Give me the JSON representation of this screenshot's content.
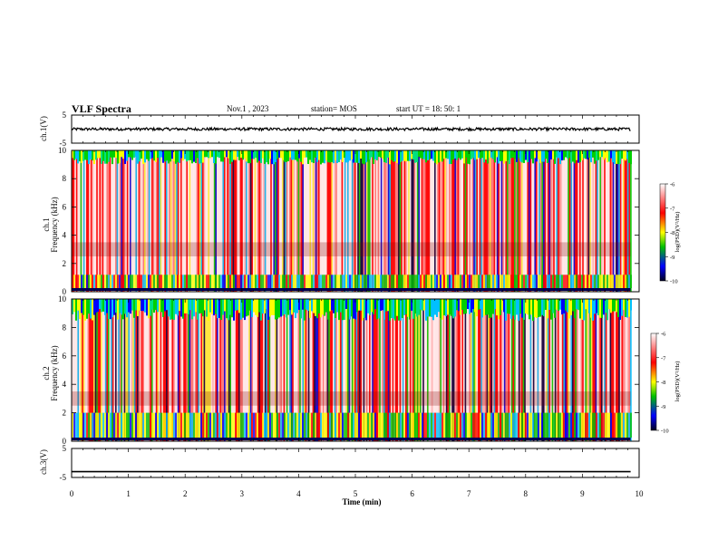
{
  "header": {
    "title": "VLF Spectra",
    "date": "Nov.1 , 2023",
    "station": "station= MOS",
    "start_ut": "start UT = 18: 50: 1"
  },
  "chart_data": [
    {
      "type": "line",
      "panel": "ch1-waveform",
      "ylabel": "ch.1(V)",
      "ylim": [
        -5,
        5
      ],
      "yticks": [
        "5",
        "-5"
      ],
      "series": [
        {
          "trace_level": 0.0,
          "noise_amplitude": 0.5
        }
      ]
    },
    {
      "type": "heatmap",
      "panel": "ch1-spectrogram",
      "ylabel": "Frequency (kHz)",
      "channel_label": "ch.1",
      "ylim": [
        0,
        10
      ],
      "yticks": [
        "0",
        "2",
        "4",
        "6",
        "8",
        "10"
      ],
      "colorbar": {
        "label": "log(PSD)(V²/Hz)",
        "range": [
          -10,
          -6
        ],
        "ticks": [
          "-6",
          "-7",
          "-8",
          "-9",
          "-10"
        ],
        "colors": [
          "#000020",
          "#0000ff",
          "#00c000",
          "#ffff00",
          "#ff0000",
          "#ffffff"
        ]
      }
    },
    {
      "type": "heatmap",
      "panel": "ch2-spectrogram",
      "ylabel": "Frequency (kHz)",
      "channel_label": "ch.2",
      "ylim": [
        0,
        10
      ],
      "yticks": [
        "0",
        "2",
        "4",
        "6",
        "8",
        "10"
      ],
      "colorbar": {
        "label": "log(PSD)(V²/Hz)",
        "range": [
          -10,
          -6
        ],
        "ticks": [
          "-6",
          "-7",
          "-8",
          "-9",
          "-10"
        ],
        "colors": [
          "#000020",
          "#0000ff",
          "#00c000",
          "#ffff00",
          "#ff0000",
          "#ffffff"
        ]
      }
    },
    {
      "type": "line",
      "panel": "ch3-waveform",
      "ylabel": "ch.3(V)",
      "ylim": [
        -5,
        5
      ],
      "yticks": [
        "5",
        "-5"
      ],
      "series": [
        {
          "trace_level": -3.0,
          "noise_amplitude": 0.0
        }
      ]
    }
  ],
  "xaxis": {
    "label": "Time (min)",
    "xlim": [
      0,
      10
    ],
    "ticks": [
      "0",
      "1",
      "2",
      "3",
      "4",
      "5",
      "6",
      "7",
      "8",
      "9",
      "10"
    ],
    "data_end": 9.85
  }
}
